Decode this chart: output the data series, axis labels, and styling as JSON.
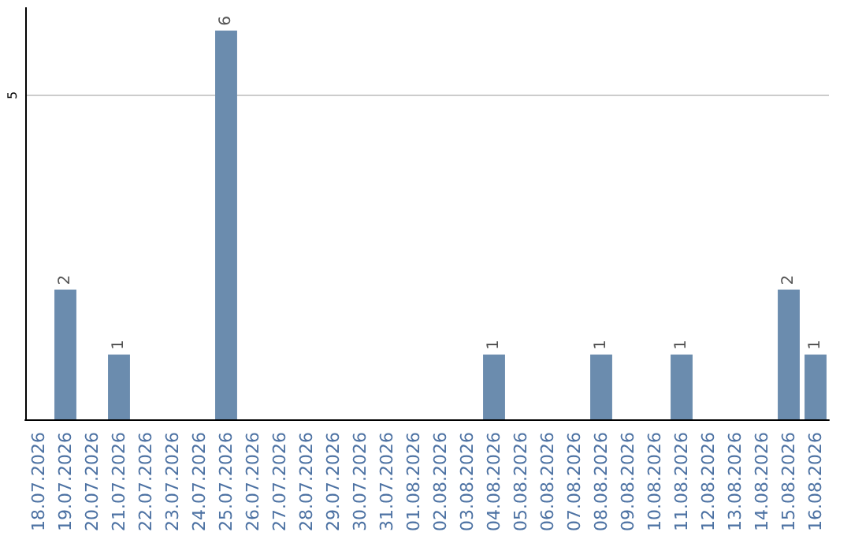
{
  "chart_data": {
    "type": "bar",
    "categories": [
      "18.07.2026",
      "19.07.2026",
      "20.07.2026",
      "21.07.2026",
      "22.07.2026",
      "23.07.2026",
      "24.07.2026",
      "25.07.2026",
      "26.07.2026",
      "27.07.2026",
      "28.07.2026",
      "29.07.2026",
      "30.07.2026",
      "31.07.2026",
      "01.08.2026",
      "02.08.2026",
      "03.08.2026",
      "04.08.2026",
      "05.08.2026",
      "06.08.2026",
      "07.08.2026",
      "08.08.2026",
      "09.08.2026",
      "10.08.2026",
      "11.08.2026",
      "12.08.2026",
      "13.08.2026",
      "14.08.2026",
      "15.08.2026",
      "16.08.2026"
    ],
    "values": [
      0,
      2,
      0,
      1,
      0,
      0,
      0,
      6,
      0,
      0,
      0,
      0,
      0,
      0,
      0,
      0,
      0,
      1,
      0,
      0,
      0,
      1,
      0,
      0,
      1,
      0,
      0,
      0,
      2,
      1
    ],
    "value_labels": [
      null,
      "2",
      null,
      "1",
      null,
      null,
      null,
      "6",
      null,
      null,
      null,
      null,
      null,
      null,
      null,
      null,
      null,
      "1",
      null,
      null,
      null,
      "1",
      null,
      null,
      "1",
      null,
      null,
      null,
      "2",
      "1"
    ],
    "color": "#6b8cae",
    "ylim": [
      0,
      6.35
    ],
    "yticks": [
      5
    ],
    "grid": "y"
  }
}
